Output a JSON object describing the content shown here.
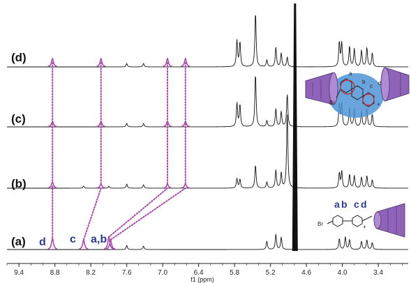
{
  "chart_data": {
    "type": "line",
    "subtype": "stacked NMR spectra",
    "xlabel": "f1 (ppm)",
    "xlim": [
      9.6,
      2.9
    ],
    "x_axis_reversed": true,
    "x_ticks": [
      "9.4",
      "8.8",
      "8.2",
      "7.6",
      "7.0",
      "6.4",
      "5.8",
      "5.2",
      "4.6",
      "4.0",
      "3.4"
    ],
    "x_tick_values": [
      9.4,
      8.8,
      8.2,
      7.6,
      7.0,
      6.4,
      5.8,
      5.2,
      4.6,
      4.0,
      3.4
    ],
    "solvent_peak_ppm": 4.79,
    "series": [
      {
        "name": "(d)",
        "peaks": [
          {
            "ppm": 8.84,
            "height": 12,
            "color": "#a64ca6"
          },
          {
            "ppm": 8.03,
            "height": 12,
            "color": "#a64ca6"
          },
          {
            "ppm": 7.6,
            "height": 5
          },
          {
            "ppm": 7.32,
            "height": 5
          },
          {
            "ppm": 6.92,
            "height": 12,
            "color": "#a64ca6"
          },
          {
            "ppm": 6.62,
            "height": 12,
            "color": "#a64ca6"
          },
          {
            "ppm": 5.76,
            "height": 38
          },
          {
            "ppm": 5.71,
            "height": 36
          },
          {
            "ppm": 5.45,
            "height": 80
          },
          {
            "ppm": 5.26,
            "height": 10
          },
          {
            "ppm": 5.11,
            "height": 28
          },
          {
            "ppm": 5.02,
            "height": 20
          },
          {
            "ppm": 4.92,
            "height": 14
          },
          {
            "ppm": 4.05,
            "height": 36
          },
          {
            "ppm": 4.01,
            "height": 34
          },
          {
            "ppm": 3.88,
            "height": 30
          },
          {
            "ppm": 3.8,
            "height": 26
          },
          {
            "ppm": 3.68,
            "height": 24
          },
          {
            "ppm": 3.59,
            "height": 28
          },
          {
            "ppm": 3.5,
            "height": 20
          }
        ]
      },
      {
        "name": "(c)",
        "peaks": [
          {
            "ppm": 8.84,
            "height": 8,
            "color": "#a64ca6"
          },
          {
            "ppm": 8.03,
            "height": 8,
            "color": "#a64ca6"
          },
          {
            "ppm": 7.6,
            "height": 5
          },
          {
            "ppm": 7.32,
            "height": 5
          },
          {
            "ppm": 6.92,
            "height": 8,
            "color": "#a64ca6"
          },
          {
            "ppm": 6.62,
            "height": 8,
            "color": "#a64ca6"
          },
          {
            "ppm": 5.76,
            "height": 34
          },
          {
            "ppm": 5.71,
            "height": 32
          },
          {
            "ppm": 5.45,
            "height": 78
          },
          {
            "ppm": 5.26,
            "height": 9
          },
          {
            "ppm": 5.11,
            "height": 26
          },
          {
            "ppm": 5.02,
            "height": 22
          },
          {
            "ppm": 4.92,
            "height": 48
          },
          {
            "ppm": 4.05,
            "height": 34
          },
          {
            "ppm": 4.01,
            "height": 32
          },
          {
            "ppm": 3.88,
            "height": 28
          },
          {
            "ppm": 3.8,
            "height": 26
          },
          {
            "ppm": 3.68,
            "height": 22
          },
          {
            "ppm": 3.59,
            "height": 26
          },
          {
            "ppm": 3.5,
            "height": 18
          }
        ]
      },
      {
        "name": "(b)",
        "peaks": [
          {
            "ppm": 8.84,
            "height": 9,
            "color": "#a64ca6"
          },
          {
            "ppm": 8.32,
            "height": 3
          },
          {
            "ppm": 7.9,
            "height": 3
          },
          {
            "ppm": 8.03,
            "height": 6,
            "color": "#a64ca6"
          },
          {
            "ppm": 7.6,
            "height": 6
          },
          {
            "ppm": 7.32,
            "height": 5
          },
          {
            "ppm": 6.92,
            "height": 6,
            "color": "#a64ca6"
          },
          {
            "ppm": 6.62,
            "height": 6,
            "color": "#a64ca6"
          },
          {
            "ppm": 5.76,
            "height": 14
          },
          {
            "ppm": 5.71,
            "height": 13
          },
          {
            "ppm": 5.45,
            "height": 34
          },
          {
            "ppm": 5.26,
            "height": 9
          },
          {
            "ppm": 5.11,
            "height": 26
          },
          {
            "ppm": 5.02,
            "height": 22
          },
          {
            "ppm": 4.92,
            "height": 110
          },
          {
            "ppm": 4.05,
            "height": 22
          },
          {
            "ppm": 4.01,
            "height": 24
          },
          {
            "ppm": 3.88,
            "height": 20
          },
          {
            "ppm": 3.8,
            "height": 18
          },
          {
            "ppm": 3.68,
            "height": 16
          },
          {
            "ppm": 3.59,
            "height": 18
          },
          {
            "ppm": 3.5,
            "height": 12
          }
        ]
      },
      {
        "name": "(a)",
        "peaks": [
          {
            "ppm": 8.84,
            "height": 16,
            "color": "#a64ca6"
          },
          {
            "ppm": 8.32,
            "height": 14,
            "color": "#a64ca6"
          },
          {
            "ppm": 7.9,
            "height": 18,
            "color": "#a64ca6"
          },
          {
            "ppm": 7.87,
            "height": 14,
            "color": "#a64ca6"
          },
          {
            "ppm": 7.6,
            "height": 6
          },
          {
            "ppm": 7.32,
            "height": 5
          },
          {
            "ppm": 5.26,
            "height": 12
          },
          {
            "ppm": 5.11,
            "height": 22
          },
          {
            "ppm": 5.02,
            "height": 18
          },
          {
            "ppm": 4.05,
            "height": 16
          },
          {
            "ppm": 3.95,
            "height": 18
          },
          {
            "ppm": 3.88,
            "height": 14
          },
          {
            "ppm": 3.68,
            "height": 12
          },
          {
            "ppm": 3.59,
            "height": 14
          },
          {
            "ppm": 3.5,
            "height": 10
          }
        ]
      }
    ],
    "correlation_lines": [
      {
        "from": "(d)",
        "to": "(b)",
        "ppm": [
          8.84,
          8.84
        ]
      },
      {
        "from": "(d)",
        "to": "(b)",
        "ppm": [
          8.03,
          8.03
        ]
      },
      {
        "from": "(d)",
        "to": "(b)",
        "ppm": [
          6.92,
          6.92
        ]
      },
      {
        "from": "(d)",
        "to": "(b)",
        "ppm": [
          6.62,
          6.62
        ]
      },
      {
        "from": "(b)",
        "to": "(a)",
        "ppm": [
          8.84,
          8.84
        ]
      },
      {
        "from": "(b)",
        "to": "(a)",
        "ppm": [
          8.03,
          8.32
        ]
      },
      {
        "from": "(b)",
        "to": "(a)",
        "ppm": [
          6.92,
          7.9
        ]
      },
      {
        "from": "(b)",
        "to": "(a)",
        "ppm": [
          6.62,
          7.87
        ]
      }
    ],
    "peak_assignments": [
      {
        "label": "d",
        "ppm": 8.84,
        "trace": "(a)"
      },
      {
        "label": "c",
        "ppm": 8.32,
        "trace": "(a)"
      },
      {
        "label": "a,b",
        "ppm": 7.88,
        "trace": "(a)"
      }
    ],
    "structure_labels": {
      "guest_ring_a": "a",
      "guest_ring_b": "b",
      "guest_ring_c": "c",
      "guest_ring_d": "d",
      "bromo": "Br",
      "cation": "+",
      "complex_bromo": "Br",
      "complex_cation": "+",
      "complex_label_a": "a",
      "complex_label_b": "b",
      "complex_label_c": "c",
      "complex_label_d": "d"
    },
    "colors": {
      "trace": "#111111",
      "highlight": "#a64ca6",
      "assignment_text": "#2e3a8c",
      "cyclodextrin": "#8e63b8",
      "complex_core": "#4f95d6"
    }
  }
}
